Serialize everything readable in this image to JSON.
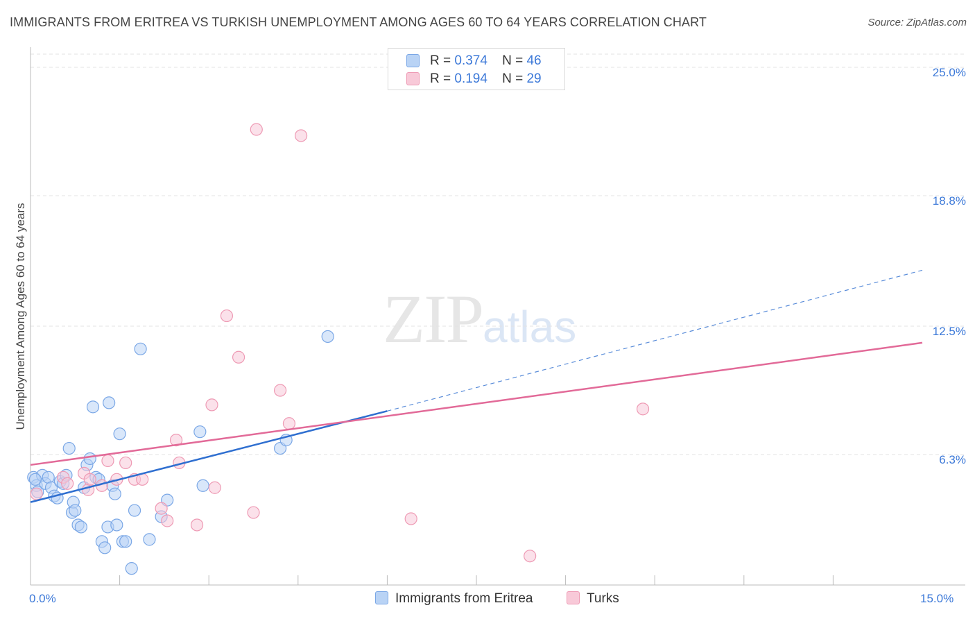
{
  "title": "IMMIGRANTS FROM ERITREA VS TURKISH UNEMPLOYMENT AMONG AGES 60 TO 64 YEARS CORRELATION CHART",
  "source": "Source: ZipAtlas.com",
  "watermark": {
    "zip": "ZIP",
    "atlas": "atlas"
  },
  "legend_top": {
    "rows": [
      {
        "r_label": "R =",
        "r_value": "0.374",
        "n_label": "N =",
        "n_value": "46"
      },
      {
        "r_label": "R =",
        "r_value": "0.194",
        "n_label": "N =",
        "n_value": "29"
      }
    ]
  },
  "colors": {
    "blue_fill": "#b9d3f5",
    "blue_stroke": "#7aa7e6",
    "blue_line": "#2f6fd0",
    "pink_fill": "#f8c9d8",
    "pink_stroke": "#ee9ab4",
    "pink_line": "#e26a98",
    "grid": "#e3e3e3",
    "axis_label": "#3b78d8"
  },
  "chart_data": {
    "type": "scatter",
    "title": "IMMIGRANTS FROM ERITREA VS TURKISH UNEMPLOYMENT AMONG AGES 60 TO 64 YEARS CORRELATION CHART",
    "xlabel": "",
    "ylabel": "Unemployment Among Ages 60 to 64 years",
    "xlim": [
      0,
      15
    ],
    "ylim": [
      0,
      25.0
    ],
    "x_tick_labels": [
      "0.0%",
      "15.0%"
    ],
    "y_tick_labels": [
      "6.3%",
      "12.5%",
      "18.8%",
      "25.0%"
    ],
    "y_ticks": [
      6.3,
      12.5,
      18.8,
      25.0
    ],
    "x_minor_ticks": [
      1.5,
      3.0,
      4.5,
      6.0,
      7.5,
      9.0,
      10.5,
      12.0,
      13.5
    ],
    "series": [
      {
        "name": "Immigrants from Eritrea",
        "color": "blue",
        "points": [
          [
            0.05,
            5.2
          ],
          [
            0.1,
            4.8
          ],
          [
            0.12,
            4.5
          ],
          [
            0.2,
            5.3
          ],
          [
            0.25,
            4.9
          ],
          [
            0.3,
            5.2
          ],
          [
            0.35,
            4.7
          ],
          [
            0.4,
            4.3
          ],
          [
            0.45,
            4.2
          ],
          [
            0.5,
            5.0
          ],
          [
            0.55,
            4.9
          ],
          [
            0.6,
            5.3
          ],
          [
            0.65,
            6.6
          ],
          [
            0.7,
            3.5
          ],
          [
            0.72,
            4.0
          ],
          [
            0.75,
            3.6
          ],
          [
            0.8,
            2.9
          ],
          [
            0.85,
            2.8
          ],
          [
            0.9,
            4.7
          ],
          [
            0.95,
            5.8
          ],
          [
            1.0,
            6.1
          ],
          [
            1.05,
            8.6
          ],
          [
            1.1,
            5.2
          ],
          [
            1.15,
            5.1
          ],
          [
            1.2,
            2.1
          ],
          [
            1.25,
            1.8
          ],
          [
            1.3,
            2.8
          ],
          [
            1.32,
            8.8
          ],
          [
            1.38,
            4.8
          ],
          [
            1.42,
            4.4
          ],
          [
            1.45,
            2.9
          ],
          [
            1.5,
            7.3
          ],
          [
            1.55,
            2.1
          ],
          [
            1.6,
            2.1
          ],
          [
            1.7,
            0.8
          ],
          [
            1.75,
            3.6
          ],
          [
            1.85,
            11.4
          ],
          [
            2.0,
            2.2
          ],
          [
            2.2,
            3.3
          ],
          [
            2.3,
            4.1
          ],
          [
            2.85,
            7.4
          ],
          [
            2.9,
            4.8
          ],
          [
            4.2,
            6.6
          ],
          [
            4.3,
            7.0
          ],
          [
            5.0,
            12.0
          ],
          [
            0.08,
            5.1
          ]
        ],
        "trend_solid": [
          [
            0.0,
            4.0
          ],
          [
            6.0,
            8.4
          ]
        ],
        "trend_dashed": [
          [
            6.0,
            8.4
          ],
          [
            15.0,
            15.2
          ]
        ]
      },
      {
        "name": "Turks",
        "color": "pink",
        "points": [
          [
            0.1,
            4.4
          ],
          [
            0.55,
            5.2
          ],
          [
            0.62,
            4.9
          ],
          [
            0.9,
            5.4
          ],
          [
            0.97,
            4.6
          ],
          [
            1.0,
            5.1
          ],
          [
            1.2,
            4.8
          ],
          [
            1.3,
            6.0
          ],
          [
            1.45,
            5.1
          ],
          [
            1.6,
            5.9
          ],
          [
            1.75,
            5.1
          ],
          [
            1.88,
            5.1
          ],
          [
            2.2,
            3.7
          ],
          [
            2.3,
            3.1
          ],
          [
            2.45,
            7.0
          ],
          [
            2.5,
            5.9
          ],
          [
            2.8,
            2.9
          ],
          [
            3.05,
            8.7
          ],
          [
            3.1,
            4.7
          ],
          [
            3.3,
            13.0
          ],
          [
            3.5,
            11.0
          ],
          [
            3.75,
            3.5
          ],
          [
            3.8,
            22.0
          ],
          [
            4.2,
            9.4
          ],
          [
            4.35,
            7.8
          ],
          [
            4.55,
            21.7
          ],
          [
            6.4,
            3.2
          ],
          [
            8.4,
            1.4
          ],
          [
            10.3,
            8.5
          ]
        ],
        "trend_solid": [
          [
            0.0,
            5.8
          ],
          [
            15.0,
            11.7
          ]
        ]
      }
    ]
  },
  "legend_bottom": {
    "items": [
      {
        "label": "Immigrants from Eritrea",
        "color": "blue"
      },
      {
        "label": "Turks",
        "color": "pink"
      }
    ]
  }
}
